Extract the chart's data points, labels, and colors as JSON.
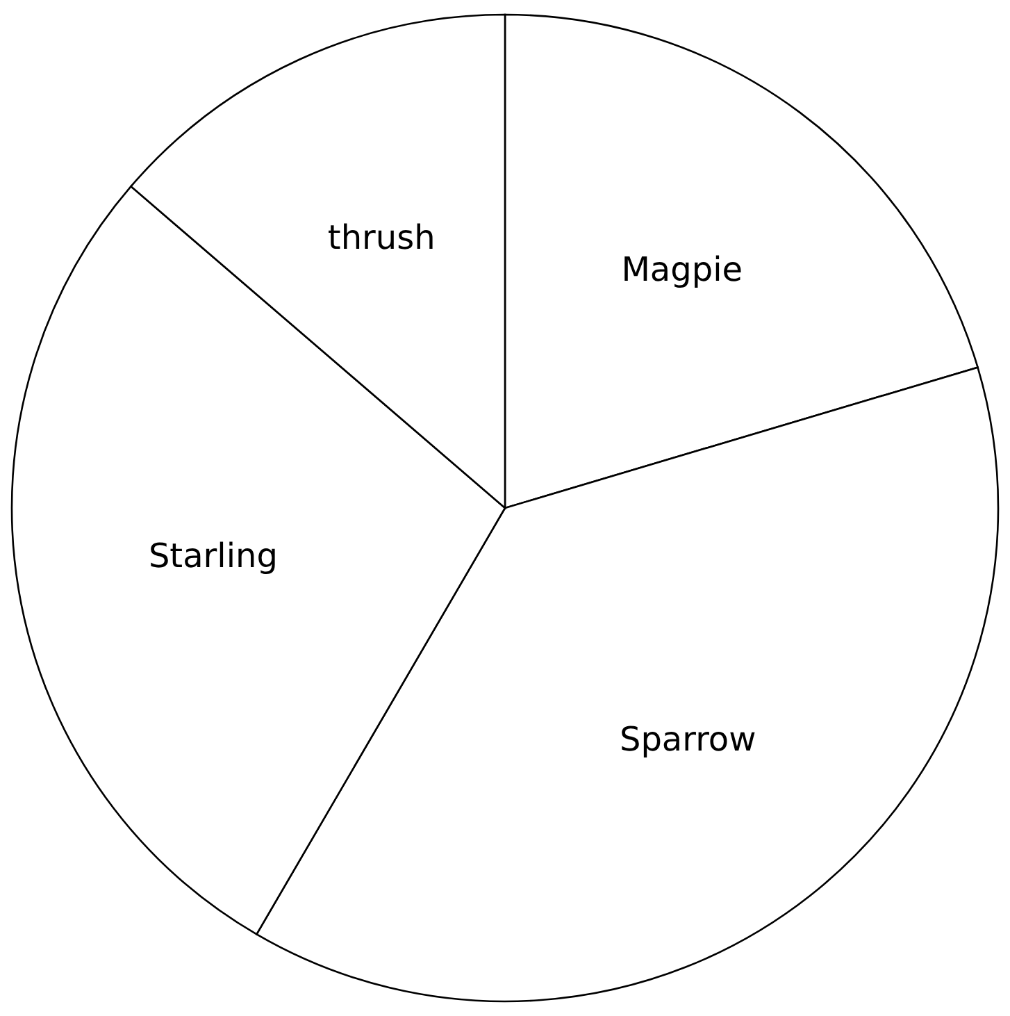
{
  "chart_data": {
    "type": "pie",
    "categories": [
      "Magpie",
      "Sparrow",
      "Starling",
      "thrush"
    ],
    "values": [
      20.4,
      38,
      27.9,
      13.7
    ],
    "colors": [
      "#ffffff",
      "#ffffff",
      "#ffffff",
      "#ffffff"
    ]
  }
}
